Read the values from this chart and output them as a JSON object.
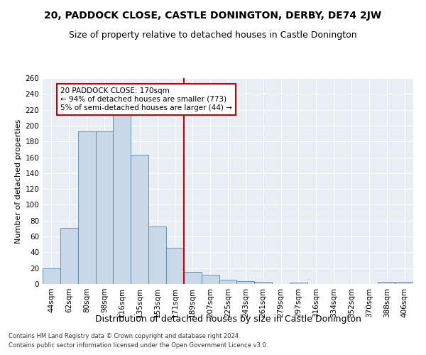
{
  "title": "20, PADDOCK CLOSE, CASTLE DONINGTON, DERBY, DE74 2JW",
  "subtitle": "Size of property relative to detached houses in Castle Donington",
  "xlabel": "Distribution of detached houses by size in Castle Donington",
  "ylabel": "Number of detached properties",
  "footer_line1": "Contains HM Land Registry data © Crown copyright and database right 2024.",
  "footer_line2": "Contains public sector information licensed under the Open Government Licence v3.0.",
  "categories": [
    "44sqm",
    "62sqm",
    "80sqm",
    "98sqm",
    "116sqm",
    "135sqm",
    "153sqm",
    "171sqm",
    "189sqm",
    "207sqm",
    "225sqm",
    "243sqm",
    "261sqm",
    "279sqm",
    "297sqm",
    "316sqm",
    "334sqm",
    "352sqm",
    "370sqm",
    "388sqm",
    "406sqm"
  ],
  "values": [
    20,
    71,
    193,
    193,
    215,
    163,
    73,
    46,
    15,
    12,
    5,
    4,
    3,
    0,
    2,
    0,
    0,
    0,
    0,
    3,
    3
  ],
  "bar_color": "#c8d8e8",
  "bar_edgecolor": "#5588aa",
  "vline_color": "#cc0000",
  "vline_index": 7,
  "annotation_text": "20 PADDOCK CLOSE: 170sqm\n← 94% of detached houses are smaller (773)\n5% of semi-detached houses are larger (44) →",
  "annotation_box_facecolor": "#ffffff",
  "annotation_box_edgecolor": "#cc0000",
  "ylim": [
    0,
    260
  ],
  "yticks": [
    0,
    20,
    40,
    60,
    80,
    100,
    120,
    140,
    160,
    180,
    200,
    220,
    240,
    260
  ],
  "bg_color": "#e8eef4",
  "grid_color": "#ffffff",
  "title_fontsize": 10,
  "subtitle_fontsize": 9,
  "ylabel_fontsize": 8,
  "xlabel_fontsize": 9,
  "tick_fontsize": 7.5,
  "ann_fontsize": 7.5,
  "footer_fontsize": 6
}
